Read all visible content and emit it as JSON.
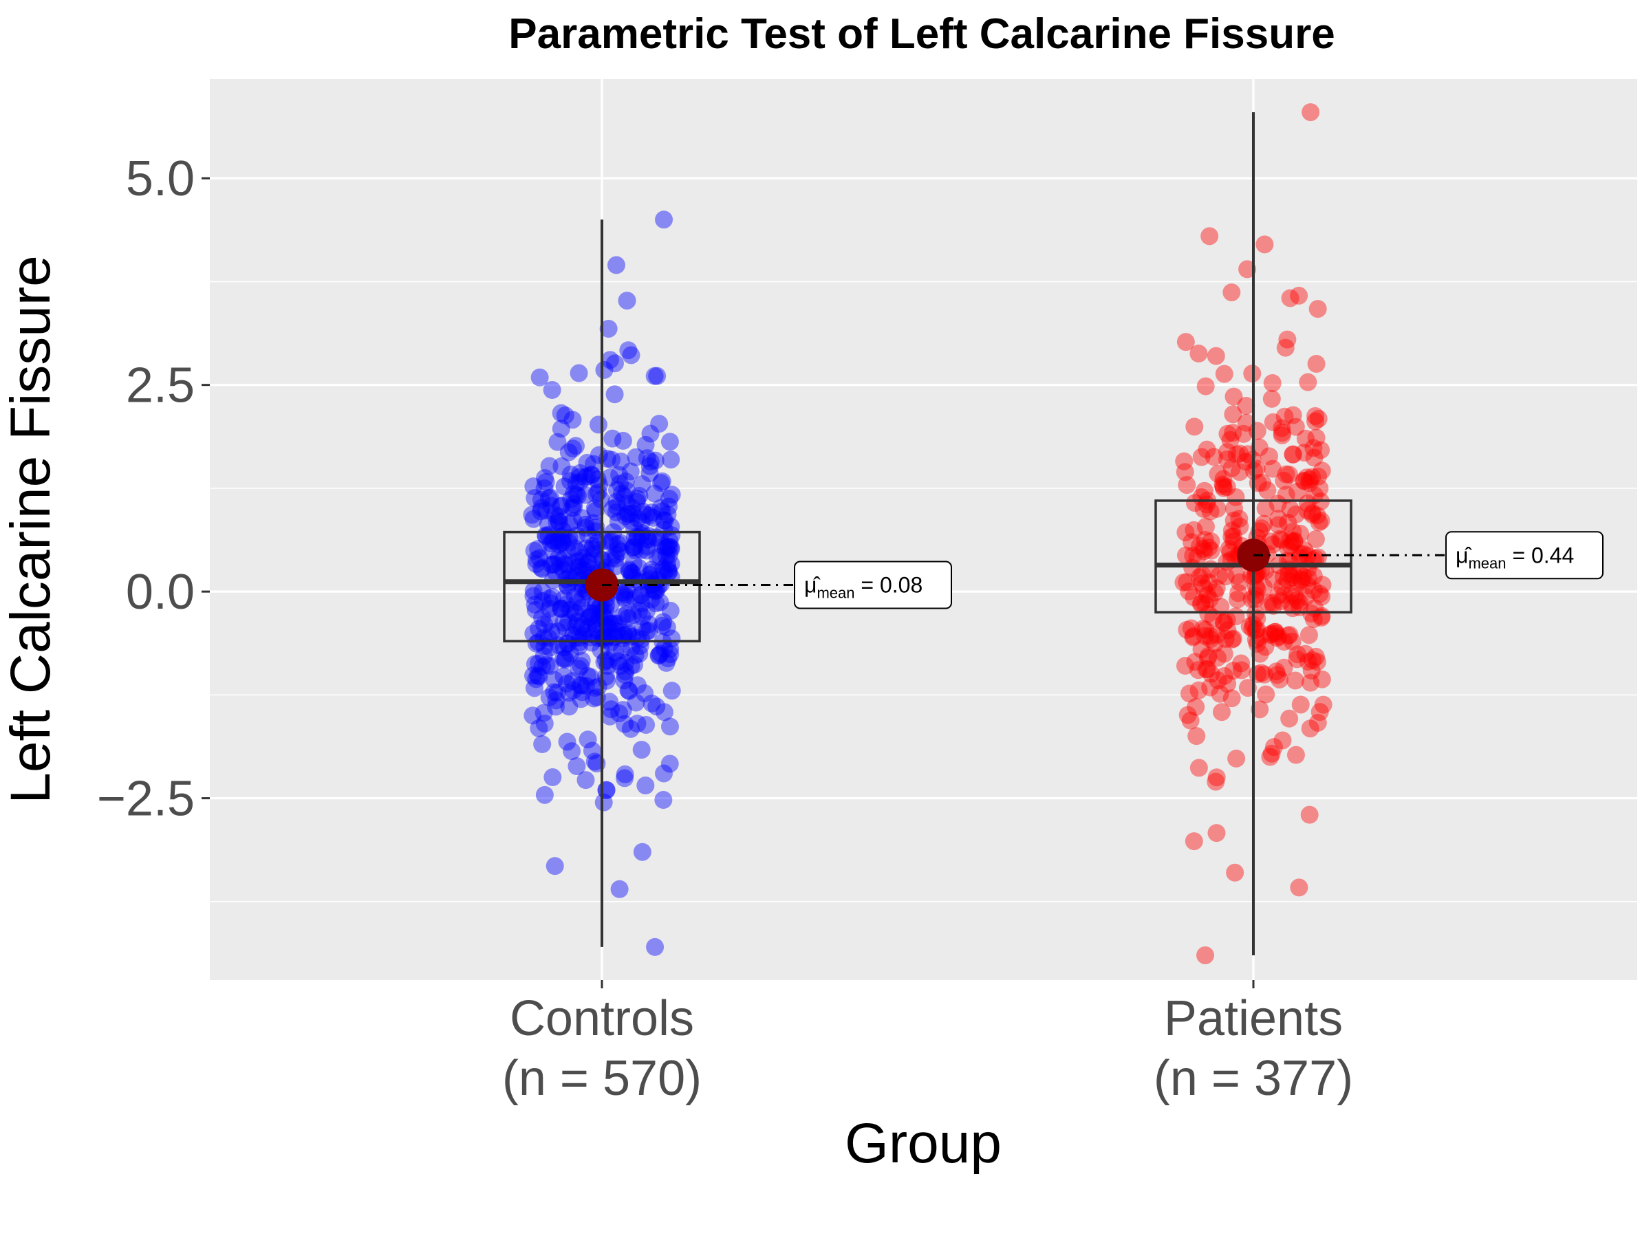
{
  "chart_data": {
    "type": "box",
    "title": "Parametric Test of Left Calcarine Fissure",
    "xlabel": "Group",
    "ylabel": "Left Calcarine Fissure",
    "ylim": [
      -4.7,
      6.2
    ],
    "yticks": [
      {
        "value": -2.5,
        "label": "−2.5"
      },
      {
        "value": 0.0,
        "label": "0.0"
      },
      {
        "value": 2.5,
        "label": "2.5"
      },
      {
        "value": 5.0,
        "label": "5.0"
      }
    ],
    "grid": true,
    "categories": [
      {
        "name": "Controls",
        "n_label": "(n = 570)",
        "color": "#0000ff",
        "whisker_low": -4.3,
        "q1": -0.6,
        "median": 0.12,
        "q3": 0.72,
        "whisker_high": 4.5,
        "mean": 0.08,
        "mean_label": "0.08",
        "outliers": [
          4.5,
          3.95,
          3.52,
          3.18,
          2.92,
          2.86,
          -2.08,
          -2.2,
          -2.28,
          -2.4,
          -2.52,
          -2.55,
          -3.15,
          -3.32,
          -3.6,
          -4.3
        ]
      },
      {
        "name": "Patients",
        "n_label": "(n = 377)",
        "color": "#ff0000",
        "whisker_low": -4.4,
        "q1": -0.25,
        "median": 0.32,
        "q3": 1.1,
        "whisker_high": 5.8,
        "mean": 0.44,
        "mean_label": "0.44",
        "outliers": [
          5.8,
          4.3,
          4.2,
          3.9,
          3.62,
          3.58,
          3.55,
          3.42,
          3.05,
          3.02,
          2.95,
          2.88,
          2.85,
          -1.8,
          -1.88,
          -2.0,
          -2.02,
          -2.7,
          -2.92,
          -3.02,
          -3.4,
          -3.58,
          -4.4
        ]
      }
    ],
    "mean_annotation": {
      "symbol": "μ̂",
      "subscript": "mean",
      "equals": " = "
    }
  }
}
